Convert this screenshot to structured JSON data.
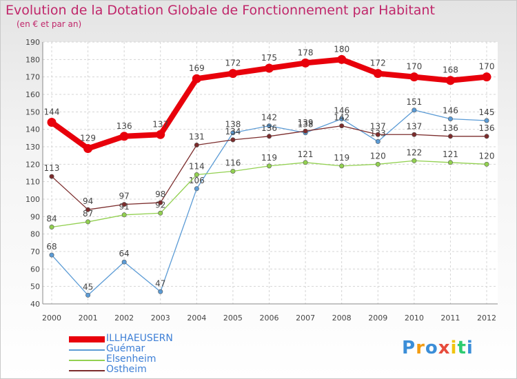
{
  "header": {
    "title": "Evolution de la Dotation Globale de Fonctionnement par Habitant",
    "subtitle": "(en € et par an)"
  },
  "chart_data": {
    "type": "line",
    "title": "Evolution de la Dotation Globale de Fonctionnement par Habitant",
    "subtitle": "(en € et par an)",
    "xlabel": "",
    "ylabel": "",
    "categories": [
      "2000",
      "2001",
      "2002",
      "2003",
      "2004",
      "2005",
      "2006",
      "2007",
      "2008",
      "2009",
      "2010",
      "2011",
      "2012"
    ],
    "ylim": [
      40,
      190
    ],
    "yticks": [
      40,
      50,
      60,
      70,
      80,
      90,
      100,
      110,
      120,
      130,
      140,
      150,
      160,
      170,
      180,
      190
    ],
    "grid": true,
    "legend_position": "bottom-left",
    "series": [
      {
        "name": "ILLHAEUSERN",
        "color": "#e8000b",
        "values": [
          144,
          129,
          136,
          137,
          169,
          172,
          175,
          178,
          180,
          172,
          170,
          168,
          170
        ]
      },
      {
        "name": "Guémar",
        "color": "#5b9bd5",
        "values": [
          68,
          45,
          64,
          47,
          106,
          138,
          142,
          138,
          146,
          133,
          151,
          146,
          145
        ]
      },
      {
        "name": "Elsenheim",
        "color": "#92d050",
        "values": [
          84,
          87,
          91,
          92,
          114,
          116,
          119,
          121,
          119,
          120,
          122,
          121,
          120
        ]
      },
      {
        "name": "Ostheim",
        "color": "#7b2c2c",
        "values": [
          113,
          94,
          97,
          98,
          131,
          134,
          136,
          139,
          142,
          137,
          137,
          136,
          136
        ]
      }
    ]
  },
  "legend": {
    "items": [
      {
        "label": "ILLHAEUSERN"
      },
      {
        "label": "Guémar"
      },
      {
        "label": "Elsenheim"
      },
      {
        "label": "Ostheim"
      }
    ]
  },
  "logo": {
    "letters": [
      "P",
      "r",
      "o",
      "x",
      "i",
      "t",
      "i"
    ],
    "colors": [
      "#3b8ed8",
      "#f39c12",
      "#3b8ed8",
      "#e74c3c",
      "#f1c40f",
      "#2ecc71",
      "#3b8ed8"
    ]
  }
}
